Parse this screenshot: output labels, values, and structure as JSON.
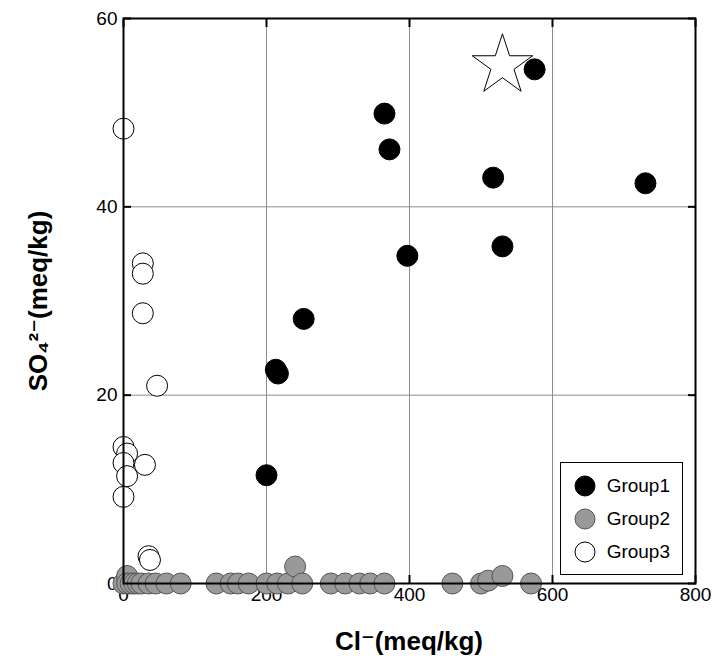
{
  "chart_data": {
    "type": "scatter",
    "x_label": "Cl⁻(meq/kg)",
    "y_label": "SO₄²⁻(meq/kg)",
    "xlim": [
      0,
      800
    ],
    "ylim": [
      0,
      60
    ],
    "xticks": [
      0,
      200,
      400,
      600,
      800
    ],
    "yticks": [
      0,
      20,
      40,
      60
    ],
    "grid": true,
    "legend": "lower right",
    "series": [
      {
        "name": "Group1",
        "color": "#000000",
        "marker": "circle",
        "x": [
          200,
          213,
          216,
          252,
          365,
          372,
          397,
          517,
          530,
          575,
          730
        ],
        "values": [
          11.5,
          22.7,
          22.3,
          28.1,
          49.9,
          46.1,
          34.8,
          43.1,
          35.8,
          54.6,
          42.5
        ]
      },
      {
        "name": "Group2",
        "color": "#999999",
        "marker": "circle",
        "x": [
          0,
          5,
          5,
          10,
          15,
          20,
          25,
          35,
          45,
          60,
          80,
          130,
          150,
          160,
          175,
          200,
          215,
          230,
          240,
          250,
          290,
          310,
          330,
          345,
          365,
          460,
          500,
          510,
          530,
          570
        ],
        "values": [
          0,
          0.8,
          0,
          0,
          0,
          0,
          0,
          0,
          0,
          0,
          0,
          0,
          0,
          0,
          0,
          0,
          0,
          0,
          1.8,
          0,
          0,
          0,
          0,
          0,
          0,
          0,
          0,
          0.3,
          0.8,
          0
        ]
      },
      {
        "name": "Group3",
        "color": "#ffffff",
        "marker": "circle",
        "x": [
          0,
          27,
          27,
          27,
          47,
          0,
          5,
          30,
          0,
          5,
          0,
          35,
          37
        ],
        "values": [
          48.3,
          34.0,
          32.9,
          28.7,
          21.0,
          14.5,
          13.8,
          12.6,
          12.8,
          11.4,
          9.2,
          2.9,
          2.5
        ]
      },
      {
        "color": "#ffffff",
        "marker": "star",
        "x": [
          530
        ],
        "values": [
          55
        ]
      }
    ]
  }
}
